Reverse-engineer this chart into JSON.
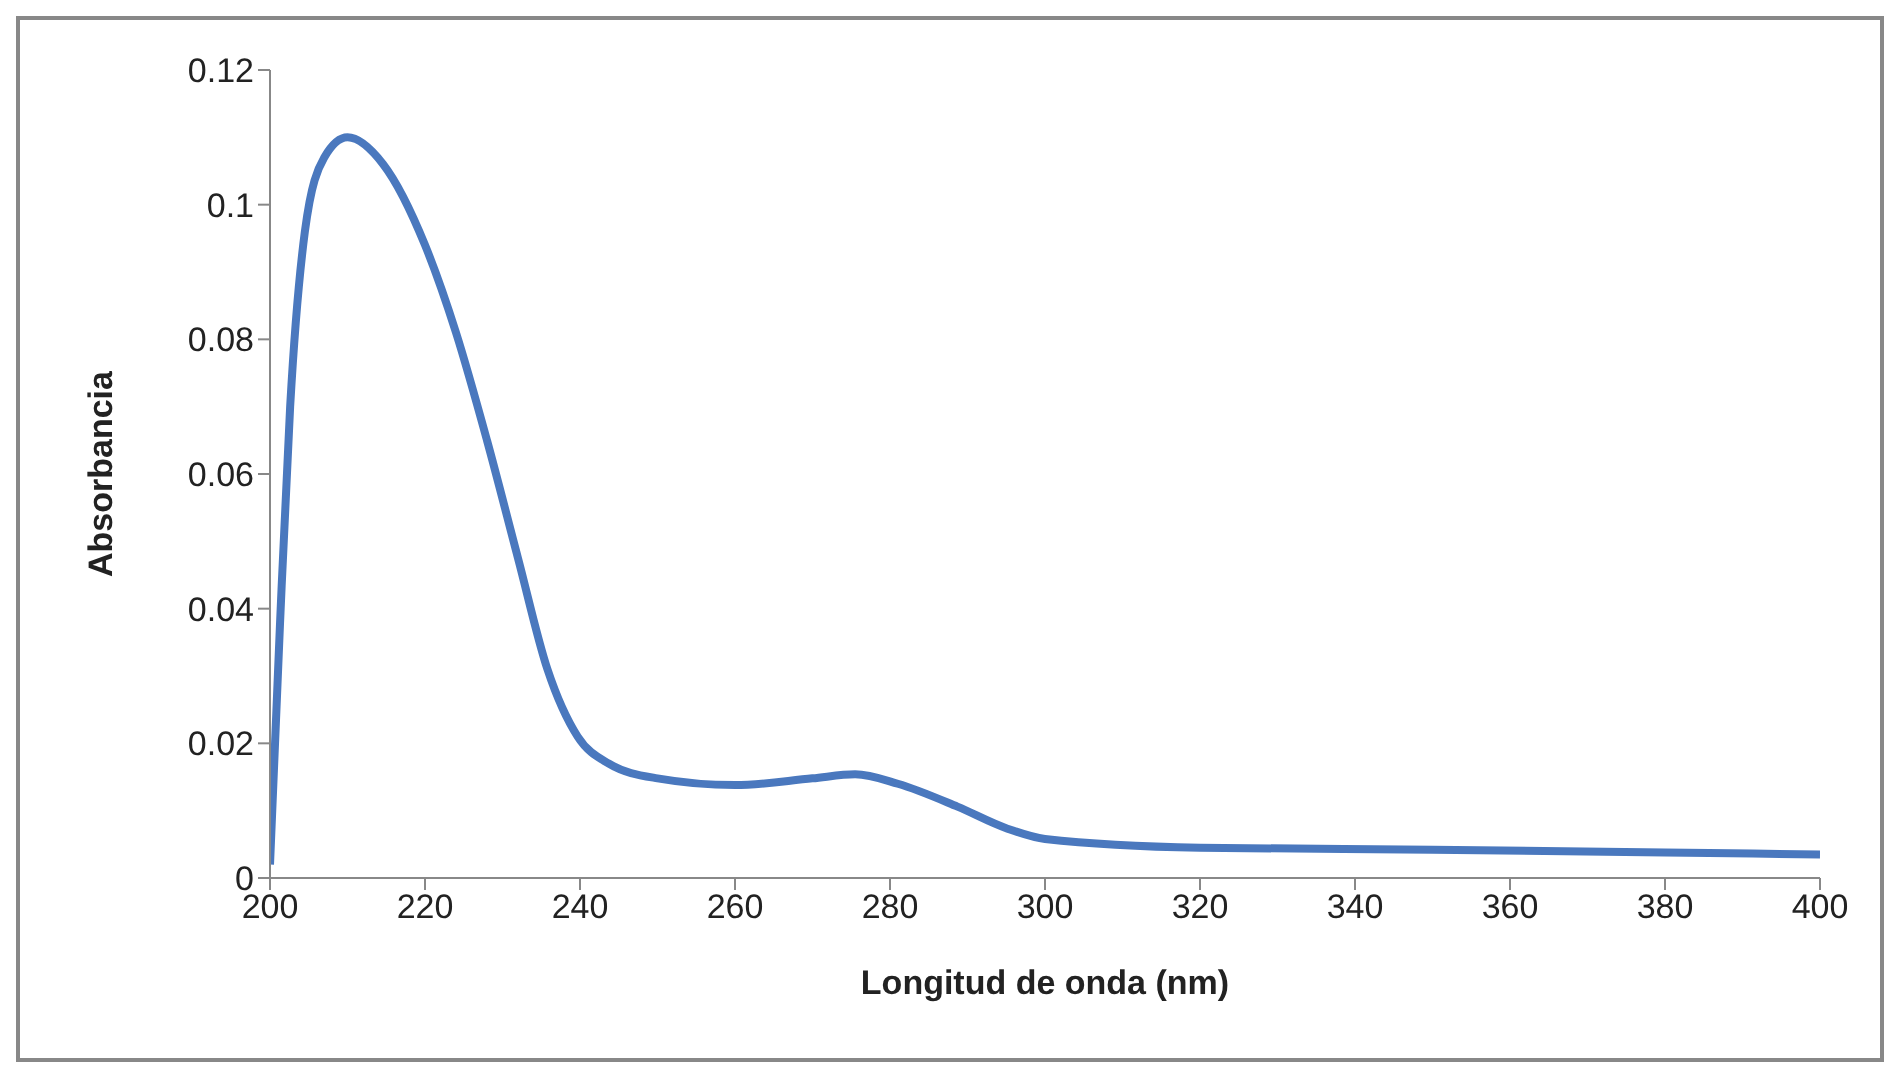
{
  "chart_data": {
    "type": "line",
    "xlabel": "Longitud de onda (nm)",
    "ylabel": "Absorbancia",
    "xlim": [
      200,
      400
    ],
    "xticks": [
      200,
      220,
      240,
      260,
      280,
      300,
      320,
      340,
      360,
      380,
      400
    ],
    "ylim": [
      0,
      0.12
    ],
    "yticks": [
      0,
      0.02,
      0.04,
      0.06,
      0.08,
      0.1,
      0.12
    ],
    "grid": false,
    "legend": false,
    "marker": "none",
    "line_style": "solid",
    "series": [
      {
        "color": "#4a78be",
        "x": [
          200,
          201.3,
          202.6,
          204.5,
          207,
          210,
          214.6,
          220,
          224,
          228,
          232,
          235.8,
          239.7,
          243.7,
          250,
          260,
          270,
          275.5,
          281,
          288.7,
          295,
          300,
          320,
          350,
          380,
          400
        ],
        "values": [
          0.002,
          0.038,
          0.07,
          0.096,
          0.107,
          0.11,
          0.106,
          0.094,
          0.081,
          0.065,
          0.0475,
          0.031,
          0.021,
          0.017,
          0.0148,
          0.0138,
          0.0148,
          0.0154,
          0.014,
          0.0106,
          0.0074,
          0.0058,
          0.0045,
          0.0042,
          0.0038,
          0.0035
        ]
      }
    ]
  }
}
